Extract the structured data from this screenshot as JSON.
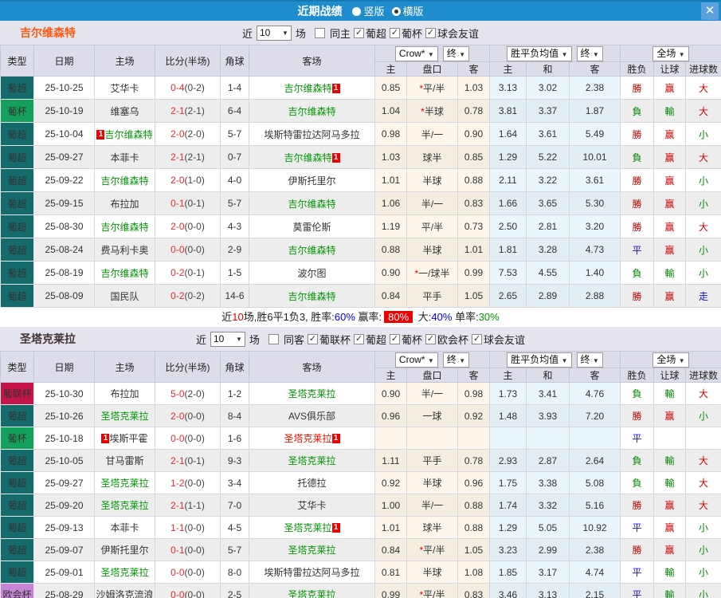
{
  "titlebar": {
    "title": "近期战绩",
    "radios": [
      {
        "label": "竖版",
        "selected": false
      },
      {
        "label": "横版",
        "selected": true
      }
    ],
    "close_label": "✕",
    "bar_color": "#1e8ccd"
  },
  "type_colors": {
    "葡超": "#156b6b",
    "葡杯": "#12a05c",
    "葡联杯": "#c61349",
    "欧会杯": "#c584d6"
  },
  "result_colors": {
    "r": "#cc0000",
    "g": "#008800",
    "b": "#1313cc"
  },
  "table_header": {
    "cols": [
      "类型",
      "日期",
      "主场",
      "比分(半场)",
      "角球",
      "客场"
    ],
    "group1_dropdowns": [
      "Crow*",
      "终"
    ],
    "group2_dropdowns": [
      "胜平负均值",
      "终"
    ],
    "group3_dropdown": "全场",
    "sub": [
      "主",
      "盘口",
      "客",
      "主",
      "和",
      "客",
      "胜负",
      "让球",
      "进球数"
    ]
  },
  "sections": [
    {
      "team": "吉尔维森特",
      "team_color": "#ff5a11",
      "filter": {
        "prefix": "近",
        "matches": "10",
        "suffix": "场",
        "venue": {
          "label": "同主",
          "checked": false
        },
        "leagues": [
          {
            "label": "葡超",
            "checked": true
          },
          {
            "label": "葡杯",
            "checked": true
          },
          {
            "label": "球会友谊",
            "checked": true
          }
        ]
      },
      "rows": [
        {
          "type": "葡超",
          "date": "25-10-25",
          "home": {
            "name": "艾华卡",
            "color": "k",
            "badge": ""
          },
          "score": "0-4",
          "half": "(0-2)",
          "corner": "1-4",
          "away": {
            "name": "吉尔维森特",
            "color": "g",
            "badge": "after"
          },
          "odds": [
            "0.85",
            "*平/半",
            "1.03"
          ],
          "avg": [
            "3.13",
            "3.02",
            "2.38"
          ],
          "res": [
            [
              "勝",
              "r"
            ],
            [
              "赢",
              "r"
            ],
            [
              "大",
              "r"
            ]
          ]
        },
        {
          "type": "葡杯",
          "date": "25-10-19",
          "home": {
            "name": "维塞乌",
            "color": "k",
            "badge": ""
          },
          "score": "2-1",
          "half": "(2-1)",
          "corner": "6-4",
          "away": {
            "name": "吉尔维森特",
            "color": "g",
            "badge": ""
          },
          "odds": [
            "1.04",
            "*半球",
            "0.78"
          ],
          "avg": [
            "3.81",
            "3.37",
            "1.87"
          ],
          "res": [
            [
              "負",
              "g"
            ],
            [
              "輸",
              "g"
            ],
            [
              "大",
              "r"
            ]
          ]
        },
        {
          "type": "葡超",
          "date": "25-10-04",
          "home": {
            "name": "吉尔维森特",
            "color": "g",
            "badge": "before"
          },
          "score": "2-0",
          "half": "(2-0)",
          "corner": "5-7",
          "away": {
            "name": "埃斯特雷拉达阿马多拉",
            "color": "k",
            "badge": ""
          },
          "odds": [
            "0.98",
            "半/一",
            "0.90"
          ],
          "avg": [
            "1.64",
            "3.61",
            "5.49"
          ],
          "res": [
            [
              "勝",
              "r"
            ],
            [
              "赢",
              "r"
            ],
            [
              "小",
              "g"
            ]
          ]
        },
        {
          "type": "葡超",
          "date": "25-09-27",
          "home": {
            "name": "本菲卡",
            "color": "k",
            "badge": ""
          },
          "score": "2-1",
          "half": "(2-1)",
          "corner": "0-7",
          "away": {
            "name": "吉尔维森特",
            "color": "g",
            "badge": "after"
          },
          "odds": [
            "1.03",
            "球半",
            "0.85"
          ],
          "avg": [
            "1.29",
            "5.22",
            "10.01"
          ],
          "res": [
            [
              "負",
              "g"
            ],
            [
              "赢",
              "r"
            ],
            [
              "大",
              "r"
            ]
          ]
        },
        {
          "type": "葡超",
          "date": "25-09-22",
          "home": {
            "name": "吉尔维森特",
            "color": "g",
            "badge": ""
          },
          "score": "2-0",
          "half": "(1-0)",
          "corner": "4-0",
          "away": {
            "name": "伊斯托里尔",
            "color": "k",
            "badge": ""
          },
          "odds": [
            "1.01",
            "半球",
            "0.88"
          ],
          "avg": [
            "2.11",
            "3.22",
            "3.61"
          ],
          "res": [
            [
              "勝",
              "r"
            ],
            [
              "赢",
              "r"
            ],
            [
              "小",
              "g"
            ]
          ]
        },
        {
          "type": "葡超",
          "date": "25-09-15",
          "home": {
            "name": "布拉加",
            "color": "k",
            "badge": ""
          },
          "score": "0-1",
          "half": "(0-1)",
          "corner": "5-7",
          "away": {
            "name": "吉尔维森特",
            "color": "g",
            "badge": ""
          },
          "odds": [
            "1.06",
            "半/一",
            "0.83"
          ],
          "avg": [
            "1.66",
            "3.65",
            "5.30"
          ],
          "res": [
            [
              "勝",
              "r"
            ],
            [
              "赢",
              "r"
            ],
            [
              "小",
              "g"
            ]
          ]
        },
        {
          "type": "葡超",
          "date": "25-08-30",
          "home": {
            "name": "吉尔维森特",
            "color": "g",
            "badge": ""
          },
          "score": "2-0",
          "half": "(0-0)",
          "corner": "4-3",
          "away": {
            "name": "莫雷伦斯",
            "color": "k",
            "badge": ""
          },
          "odds": [
            "1.19",
            "平/半",
            "0.73"
          ],
          "avg": [
            "2.50",
            "2.81",
            "3.20"
          ],
          "res": [
            [
              "勝",
              "r"
            ],
            [
              "赢",
              "r"
            ],
            [
              "大",
              "r"
            ]
          ]
        },
        {
          "type": "葡超",
          "date": "25-08-24",
          "home": {
            "name": "费马利卡奥",
            "color": "k",
            "badge": ""
          },
          "score": "0-0",
          "half": "(0-0)",
          "corner": "2-9",
          "away": {
            "name": "吉尔维森特",
            "color": "g",
            "badge": ""
          },
          "odds": [
            "0.88",
            "半球",
            "1.01"
          ],
          "avg": [
            "1.81",
            "3.28",
            "4.73"
          ],
          "res": [
            [
              "平",
              "b"
            ],
            [
              "赢",
              "r"
            ],
            [
              "小",
              "g"
            ]
          ]
        },
        {
          "type": "葡超",
          "date": "25-08-19",
          "home": {
            "name": "吉尔维森特",
            "color": "g",
            "badge": ""
          },
          "score": "0-2",
          "half": "(0-1)",
          "corner": "1-5",
          "away": {
            "name": "波尔图",
            "color": "k",
            "badge": ""
          },
          "odds": [
            "0.90",
            "*一/球半",
            "0.99"
          ],
          "avg": [
            "7.53",
            "4.55",
            "1.40"
          ],
          "res": [
            [
              "負",
              "g"
            ],
            [
              "輸",
              "g"
            ],
            [
              "小",
              "g"
            ]
          ]
        },
        {
          "type": "葡超",
          "date": "25-08-09",
          "home": {
            "name": "国民队",
            "color": "k",
            "badge": ""
          },
          "score": "0-2",
          "half": "(0-2)",
          "corner": "14-6",
          "away": {
            "name": "吉尔维森特",
            "color": "g",
            "badge": ""
          },
          "odds": [
            "0.84",
            "平手",
            "1.05"
          ],
          "avg": [
            "2.65",
            "2.89",
            "2.88"
          ],
          "res": [
            [
              "勝",
              "r"
            ],
            [
              "赢",
              "r"
            ],
            [
              "走",
              "b"
            ]
          ]
        }
      ],
      "summary": [
        {
          "t": "近",
          "c": "k"
        },
        {
          "t": "10",
          "c": "r"
        },
        {
          "t": "场,胜6平1负3, 胜率:",
          "c": "k"
        },
        {
          "t": "60%",
          "c": "b"
        },
        {
          "t": " 赢率:",
          "c": "k"
        },
        {
          "t": "80%",
          "c": "badge"
        },
        {
          "t": " 大:",
          "c": "k"
        },
        {
          "t": "40%",
          "c": "b"
        },
        {
          "t": " 单率:",
          "c": "k"
        },
        {
          "t": "30%",
          "c": "g"
        }
      ]
    },
    {
      "team": "圣塔克莱拉",
      "team_color": "#443333",
      "filter": {
        "prefix": "近",
        "matches": "10",
        "suffix": "场",
        "venue": {
          "label": "同客",
          "checked": false
        },
        "leagues": [
          {
            "label": "葡联杯",
            "checked": true
          },
          {
            "label": "葡超",
            "checked": true
          },
          {
            "label": "葡杯",
            "checked": true
          },
          {
            "label": "欧会杯",
            "checked": true
          },
          {
            "label": "球会友谊",
            "checked": true
          }
        ]
      },
      "rows": [
        {
          "type": "葡联杯",
          "date": "25-10-30",
          "home": {
            "name": "布拉加",
            "color": "k",
            "badge": ""
          },
          "score": "5-0",
          "half": "(2-0)",
          "corner": "1-2",
          "away": {
            "name": "圣塔克莱拉",
            "color": "g",
            "badge": ""
          },
          "odds": [
            "0.90",
            "半/一",
            "0.98"
          ],
          "avg": [
            "1.73",
            "3.41",
            "4.76"
          ],
          "res": [
            [
              "負",
              "g"
            ],
            [
              "輸",
              "g"
            ],
            [
              "大",
              "r"
            ]
          ]
        },
        {
          "type": "葡超",
          "date": "25-10-26",
          "home": {
            "name": "圣塔克莱拉",
            "color": "g",
            "badge": ""
          },
          "score": "2-0",
          "half": "(0-0)",
          "corner": "8-4",
          "away": {
            "name": "AVS俱乐部",
            "color": "k",
            "badge": ""
          },
          "odds": [
            "0.96",
            "一球",
            "0.92"
          ],
          "avg": [
            "1.48",
            "3.93",
            "7.20"
          ],
          "res": [
            [
              "勝",
              "r"
            ],
            [
              "赢",
              "r"
            ],
            [
              "小",
              "g"
            ]
          ]
        },
        {
          "type": "葡杯",
          "date": "25-10-18",
          "home": {
            "name": "埃斯平霍",
            "color": "k",
            "badge": "before"
          },
          "score": "0-0",
          "half": "(0-0)",
          "corner": "1-6",
          "away": {
            "name": "圣塔克莱拉",
            "color": "r",
            "badge": "after"
          },
          "odds": [
            "",
            "",
            ""
          ],
          "avg": [
            "",
            "",
            ""
          ],
          "res": [
            [
              "平",
              "b"
            ],
            [
              "",
              ""
            ],
            [
              "",
              ""
            ]
          ]
        },
        {
          "type": "葡超",
          "date": "25-10-05",
          "home": {
            "name": "甘马雷斯",
            "color": "k",
            "badge": ""
          },
          "score": "2-1",
          "half": "(0-1)",
          "corner": "9-3",
          "away": {
            "name": "圣塔克莱拉",
            "color": "g",
            "badge": ""
          },
          "odds": [
            "1.11",
            "平手",
            "0.78"
          ],
          "avg": [
            "2.93",
            "2.87",
            "2.64"
          ],
          "res": [
            [
              "負",
              "g"
            ],
            [
              "輸",
              "g"
            ],
            [
              "大",
              "r"
            ]
          ]
        },
        {
          "type": "葡超",
          "date": "25-09-27",
          "home": {
            "name": "圣塔克莱拉",
            "color": "g",
            "badge": ""
          },
          "score": "1-2",
          "half": "(0-0)",
          "corner": "3-4",
          "away": {
            "name": "托德拉",
            "color": "k",
            "badge": ""
          },
          "odds": [
            "0.92",
            "半球",
            "0.96"
          ],
          "avg": [
            "1.75",
            "3.38",
            "5.08"
          ],
          "res": [
            [
              "負",
              "g"
            ],
            [
              "輸",
              "g"
            ],
            [
              "大",
              "r"
            ]
          ]
        },
        {
          "type": "葡超",
          "date": "25-09-20",
          "home": {
            "name": "圣塔克莱拉",
            "color": "g",
            "badge": ""
          },
          "score": "2-1",
          "half": "(1-1)",
          "corner": "7-0",
          "away": {
            "name": "艾华卡",
            "color": "k",
            "badge": ""
          },
          "odds": [
            "1.00",
            "半/一",
            "0.88"
          ],
          "avg": [
            "1.74",
            "3.32",
            "5.16"
          ],
          "res": [
            [
              "勝",
              "r"
            ],
            [
              "赢",
              "r"
            ],
            [
              "大",
              "r"
            ]
          ]
        },
        {
          "type": "葡超",
          "date": "25-09-13",
          "home": {
            "name": "本菲卡",
            "color": "k",
            "badge": ""
          },
          "score": "1-1",
          "half": "(0-0)",
          "corner": "4-5",
          "away": {
            "name": "圣塔克莱拉",
            "color": "g",
            "badge": "after"
          },
          "odds": [
            "1.01",
            "球半",
            "0.88"
          ],
          "avg": [
            "1.29",
            "5.05",
            "10.92"
          ],
          "res": [
            [
              "平",
              "b"
            ],
            [
              "赢",
              "r"
            ],
            [
              "小",
              "g"
            ]
          ]
        },
        {
          "type": "葡超",
          "date": "25-09-07",
          "home": {
            "name": "伊斯托里尔",
            "color": "k",
            "badge": ""
          },
          "score": "0-1",
          "half": "(0-0)",
          "corner": "5-7",
          "away": {
            "name": "圣塔克莱拉",
            "color": "g",
            "badge": ""
          },
          "odds": [
            "0.84",
            "*平/半",
            "1.05"
          ],
          "avg": [
            "3.23",
            "2.99",
            "2.38"
          ],
          "res": [
            [
              "勝",
              "r"
            ],
            [
              "赢",
              "r"
            ],
            [
              "小",
              "g"
            ]
          ]
        },
        {
          "type": "葡超",
          "date": "25-09-01",
          "home": {
            "name": "圣塔克莱拉",
            "color": "g",
            "badge": ""
          },
          "score": "0-0",
          "half": "(0-0)",
          "corner": "8-0",
          "away": {
            "name": "埃斯特雷拉达阿马多拉",
            "color": "k",
            "badge": ""
          },
          "odds": [
            "0.81",
            "半球",
            "1.08"
          ],
          "avg": [
            "1.85",
            "3.17",
            "4.74"
          ],
          "res": [
            [
              "平",
              "b"
            ],
            [
              "輸",
              "g"
            ],
            [
              "小",
              "g"
            ]
          ]
        },
        {
          "type": "欧会杯",
          "date": "25-08-29",
          "home": {
            "name": "沙姆洛克流浪",
            "color": "k",
            "badge": ""
          },
          "score": "0-0",
          "half": "(0-0)",
          "corner": "2-5",
          "away": {
            "name": "圣塔克莱拉",
            "color": "g",
            "badge": ""
          },
          "odds": [
            "0.99",
            "*平/半",
            "0.83"
          ],
          "avg": [
            "3.46",
            "3.13",
            "2.15"
          ],
          "res": [
            [
              "平",
              "b"
            ],
            [
              "輸",
              "g"
            ],
            [
              "小",
              "g"
            ]
          ]
        }
      ],
      "summary": null
    }
  ]
}
